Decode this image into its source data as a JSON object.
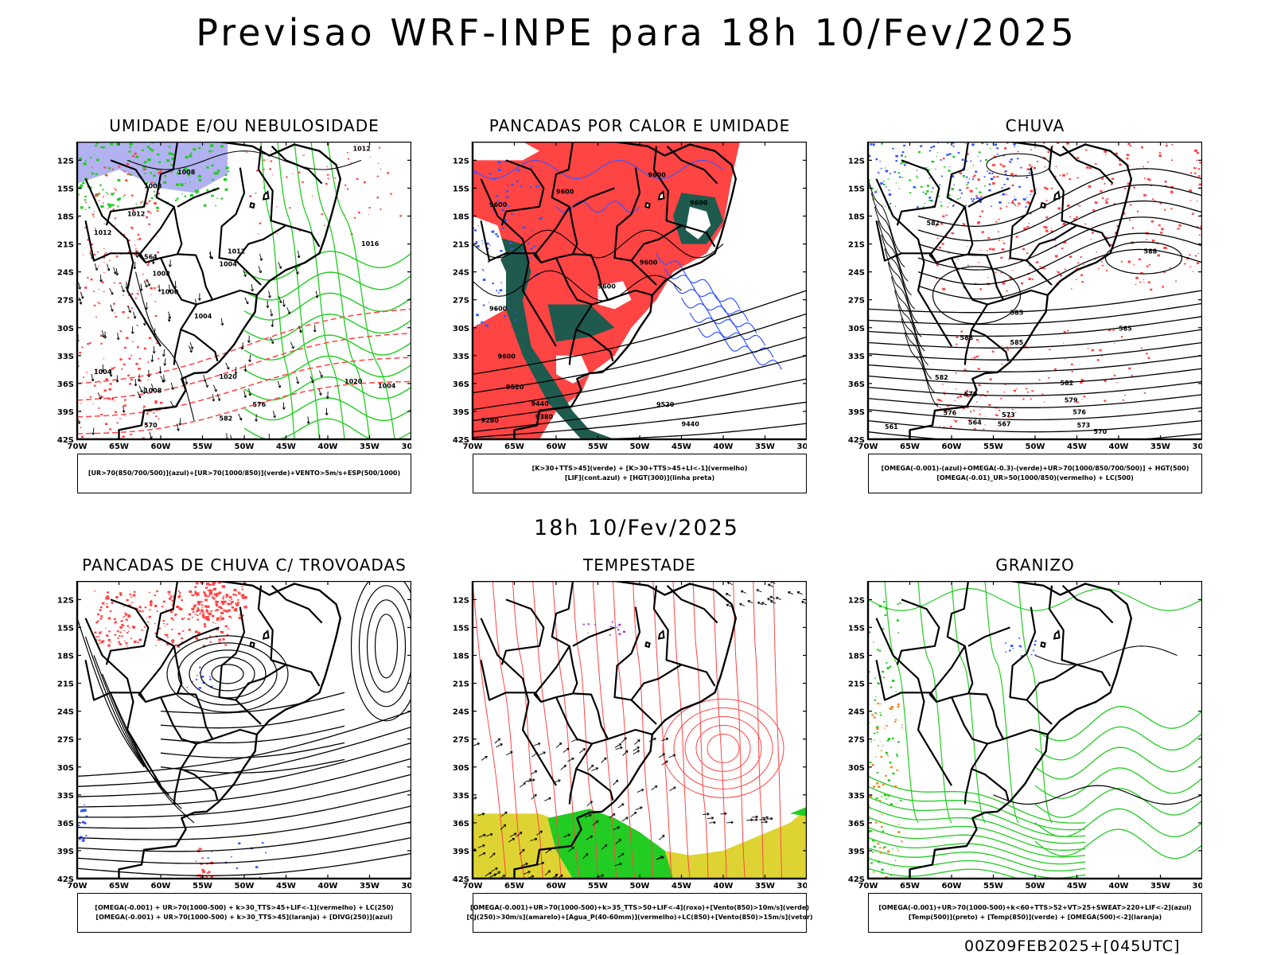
{
  "header": {
    "title": "Previsao WRF-INPE  para 18h 10/Fev/2025",
    "mid_date": "18h 10/Fev/2025",
    "run_stamp": "00Z09FEB2025+[045UTC]"
  },
  "axes": {
    "lat_labels": [
      "12S",
      "15S",
      "18S",
      "21S",
      "24S",
      "27S",
      "30S",
      "33S",
      "36S",
      "39S",
      "42S"
    ],
    "lon_labels": [
      "70W",
      "65W",
      "60W",
      "55W",
      "50W",
      "45W",
      "40W",
      "35W",
      "30W"
    ]
  },
  "colors": {
    "green": "#22cc22",
    "red": "#ff4444",
    "blue": "#3355ff",
    "lavender": "#aaaaee",
    "darkgreen": "#1f5a4e",
    "yellow": "#ddd433",
    "orange": "#ee8822",
    "purple": "#aa33cc"
  },
  "panels": [
    {
      "id": "umidade",
      "title": "UMIDADE E/OU NEBULOSIDADE",
      "caption": [
        "[UR>70(850/700/500)](azul)+[UR>70(1000/850)](verde)+VENTO>5m/s+ESP(500/1000)"
      ],
      "contour_labels": [
        "1012",
        "1008",
        "1008",
        "1012",
        "1012",
        "1016",
        "1012",
        "1004",
        "1008",
        "1000",
        "1004",
        "1004",
        "1020",
        "1020",
        "1004",
        "1008",
        "582",
        "576",
        "570",
        "564"
      ]
    },
    {
      "id": "pancadas_calor",
      "title": "PANCADAS POR CALOR E UMIDADE",
      "caption": [
        "[K>30+TTS>45](verde) + [K>30+TTS>45+LI<-1](vermelho)",
        "[LIF](cont.azul) + [HGT(300)](linha preta)"
      ],
      "contour_labels": [
        "9600",
        "9600",
        "9600",
        "9600",
        "9600",
        "9600",
        "9600",
        "9600",
        "9520",
        "9440",
        "9380",
        "9280",
        "9520",
        "9440"
      ]
    },
    {
      "id": "chuva",
      "title": "CHUVA",
      "caption": [
        "[OMEGA(-0.001)-(azul)+OMEGA(-0.3)-(verde)+UR>70(1000/850/700/500)] + HGT(500)",
        "[OMEGA(-0.01)_UR>50(1000/850)(vermelho) + LC(500)"
      ],
      "contour_labels": [
        "582",
        "588",
        "585",
        "588",
        "585",
        "585",
        "582",
        "579",
        "576",
        "573",
        "567",
        "564",
        "561",
        "582",
        "579",
        "576",
        "573",
        "570"
      ]
    },
    {
      "id": "pancadas_trovoadas",
      "title": "PANCADAS DE CHUVA C/ TROVOADAS",
      "caption": [
        "[OMEGA(-0.001) + UR>70(1000-500) + k>30_TTS>45+LIF<-1](vermelho) + LC(250)",
        "[OMEGA(-0.001) + UR>70(1000-500) + k>30_TTS>45](laranja) + [DIVG(250)](azul)"
      ],
      "contour_labels": []
    },
    {
      "id": "tempestade",
      "title": "TEMPESTADE",
      "caption": [
        "[OMEGA(-0.001)+UR>70(1000-500)+k>35_TTS>50+LIF<-4](roxo)+[Vento(850)>10m/s](verde)",
        "[CJ(250)>30m/s](amarelo)+[Agua_P(40-60mm)](vermelho)+LC(850)+[Vento(850)>15m/s](vetor)"
      ],
      "contour_labels": []
    },
    {
      "id": "granizo",
      "title": "GRANIZO",
      "caption": [
        "[OMEGA(-0.001)+UR>70(1000-500)+k<60+TTS>52+VT>25+SWEAT>220+LIF<-2](azul)",
        "[Temp(500)](preto) + [Temp(850)](verde) + [OMEGA(500)<-2](laranja)"
      ],
      "contour_labels": []
    }
  ]
}
